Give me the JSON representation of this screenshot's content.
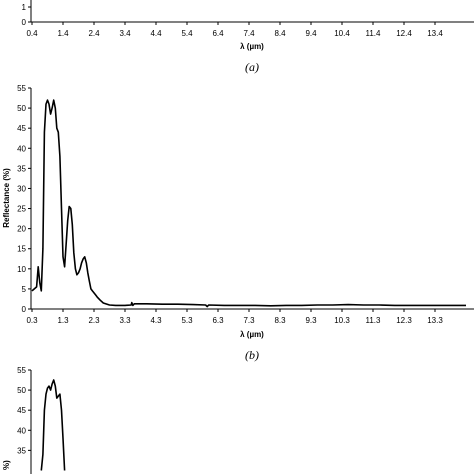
{
  "chart_data": [
    {
      "type": "line",
      "panel": "a",
      "caption": "(a)",
      "xlabel": "λ (µm)",
      "ylabel": "",
      "x_ticks": [
        "0.4",
        "1.4",
        "2.4",
        "3.4",
        "4.4",
        "5.4",
        "6.4",
        "7.4",
        "8.4",
        "9.4",
        "10.4",
        "11.4",
        "12.4",
        "13.4"
      ],
      "xlim": [
        0.4,
        14.4
      ],
      "y_ticks": [
        "1",
        "0"
      ],
      "grid": false,
      "series": [
        {
          "color": "#000000",
          "x": [],
          "y": []
        }
      ]
    },
    {
      "type": "line",
      "panel": "b",
      "caption": "(b)",
      "xlabel": "λ (µm)",
      "ylabel": "Reflectance (%)",
      "x_ticks": [
        "0.3",
        "1.3",
        "2.3",
        "3.3",
        "4.3",
        "5.3",
        "6.3",
        "7.3",
        "8.3",
        "9.3",
        "10.3",
        "11.3",
        "12.3",
        "13.3"
      ],
      "xlim": [
        0.3,
        14.3
      ],
      "y_ticks": [
        "0",
        "5",
        "10",
        "15",
        "20",
        "25",
        "30",
        "35",
        "40",
        "45",
        "50",
        "55"
      ],
      "ylim": [
        0,
        55
      ],
      "grid": false,
      "series": [
        {
          "color": "#000000",
          "x": [
            0.3,
            0.45,
            0.5,
            0.55,
            0.6,
            0.65,
            0.7,
            0.75,
            0.8,
            0.85,
            0.9,
            0.95,
            1.0,
            1.05,
            1.1,
            1.15,
            1.2,
            1.25,
            1.3,
            1.35,
            1.4,
            1.45,
            1.5,
            1.55,
            1.6,
            1.65,
            1.7,
            1.75,
            1.8,
            1.85,
            1.9,
            1.95,
            2.0,
            2.05,
            2.1,
            2.15,
            2.2,
            2.25,
            2.3,
            2.35,
            2.4,
            2.5,
            2.6,
            2.8,
            3.0,
            3.2,
            3.3,
            3.5,
            3.52,
            3.55,
            3.6,
            4.0,
            4.5,
            5.0,
            5.5,
            5.9,
            5.95,
            6.0,
            6.5,
            7.0,
            7.5,
            8.0,
            8.5,
            9.0,
            9.5,
            10.0,
            10.5,
            11.0,
            11.5,
            12.0,
            12.5,
            13.0,
            13.5,
            14.3
          ],
          "y": [
            4.5,
            5.5,
            10.5,
            6.5,
            4.5,
            15,
            44,
            51,
            52,
            51,
            48.5,
            50,
            52,
            50,
            45,
            44,
            38,
            25,
            13,
            10.5,
            16,
            22,
            25.5,
            25,
            21,
            14,
            10,
            8.5,
            9,
            10,
            11.5,
            12.5,
            13,
            11.5,
            9,
            7,
            5,
            4.5,
            4,
            3.5,
            3,
            2.2,
            1.5,
            1.0,
            0.9,
            0.9,
            0.9,
            1.0,
            1.6,
            0.9,
            1.3,
            1.3,
            1.2,
            1.2,
            1.1,
            1.0,
            0.6,
            1.0,
            0.9,
            0.9,
            0.9,
            0.8,
            0.9,
            0.9,
            1.0,
            1.0,
            1.1,
            1.0,
            1.0,
            0.9,
            0.9,
            0.9,
            0.9,
            0.9
          ]
        }
      ]
    },
    {
      "type": "line",
      "panel": "c",
      "caption": "",
      "xlabel": "",
      "ylabel": "%)",
      "y_ticks": [
        "35",
        "40",
        "45",
        "50",
        "55"
      ],
      "ylim": [
        30,
        55
      ],
      "grid": false,
      "series": [
        {
          "color": "#000000",
          "x": [
            0.6,
            0.65,
            0.7,
            0.75,
            0.8,
            0.85,
            0.9,
            0.95,
            1.0,
            1.05,
            1.1,
            1.15,
            1.2,
            1.25,
            1.3,
            1.35
          ],
          "y": [
            30,
            34,
            45,
            49,
            50.5,
            51,
            50,
            51.5,
            52.5,
            51,
            48,
            48.5,
            49,
            45,
            38,
            30
          ]
        }
      ]
    }
  ]
}
